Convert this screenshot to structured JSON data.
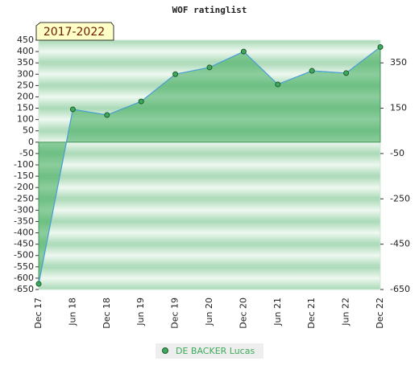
{
  "chart_data": {
    "type": "area",
    "title": "WOF ratinglist",
    "annotation": "2017-2022",
    "categories": [
      "Dec 17",
      "Jun 18",
      "Dec 18",
      "Jun 19",
      "Dec 19",
      "Jun 20",
      "Dec 20",
      "Jun 21",
      "Dec 21",
      "Jun 22",
      "Dec 22"
    ],
    "series": [
      {
        "name": "DE BACKER Lucas",
        "color": "#3caa5a",
        "line_color": "#4a9fd8",
        "values": [
          -625,
          145,
          120,
          180,
          300,
          330,
          400,
          255,
          315,
          305,
          420
        ]
      }
    ],
    "ylim": [
      -650,
      450
    ],
    "yticks": [
      -650,
      -600,
      -550,
      -500,
      -450,
      -400,
      -350,
      -300,
      -250,
      -200,
      -150,
      -100,
      -50,
      0,
      50,
      100,
      150,
      200,
      250,
      300,
      350,
      400,
      450
    ],
    "y2lim": [
      -650,
      450
    ],
    "y2ticks": [
      -650,
      -450,
      -250,
      -50,
      150,
      350
    ]
  }
}
